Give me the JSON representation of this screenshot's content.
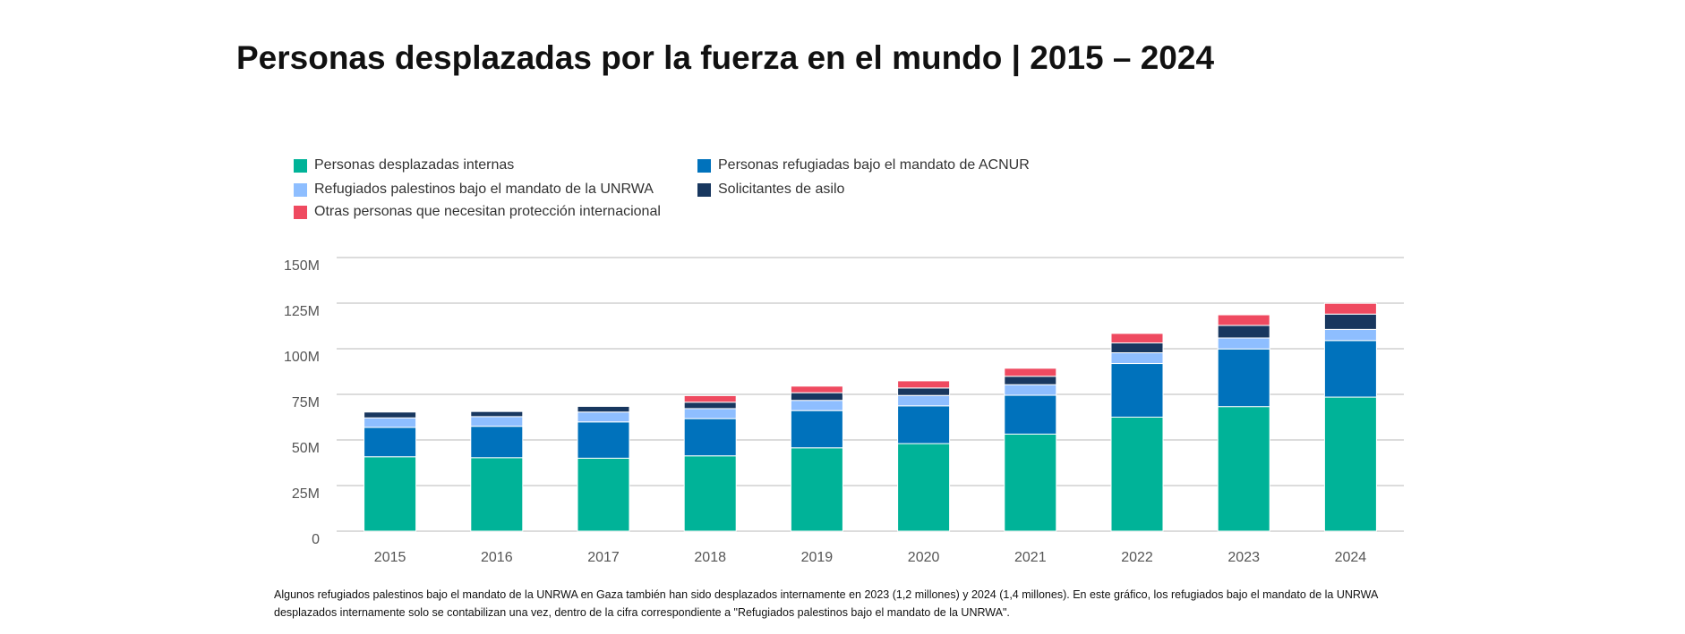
{
  "chart_data": {
    "type": "stacked_bar",
    "title": "Personas desplazadas por la fuerza en el mundo | 2015 – 2024",
    "categories": [
      "2015",
      "2016",
      "2017",
      "2018",
      "2019",
      "2020",
      "2021",
      "2022",
      "2023",
      "2024"
    ],
    "series": [
      {
        "name": "Personas desplazadas internas",
        "color": "#00b398",
        "values": [
          40.8,
          40.3,
          40.0,
          41.3,
          45.7,
          48.0,
          53.2,
          62.5,
          68.3,
          73.5
        ]
      },
      {
        "name": "Personas refugiadas bajo el mandato de ACNUR",
        "color": "#0072bc",
        "values": [
          16.1,
          17.2,
          19.9,
          20.4,
          20.4,
          20.7,
          21.3,
          29.4,
          31.6,
          31.0
        ]
      },
      {
        "name": "Refugiados palestinos bajo el mandato de la UNRWA",
        "color": "#8ebeff",
        "values": [
          5.2,
          5.3,
          5.4,
          5.5,
          5.6,
          5.7,
          5.8,
          5.9,
          6.0,
          6.1
        ]
      },
      {
        "name": "Solicitantes de asilo",
        "color": "#18375f",
        "values": [
          3.2,
          2.8,
          3.1,
          3.5,
          4.2,
          4.1,
          4.6,
          5.4,
          6.9,
          8.4
        ]
      },
      {
        "name": "Otras personas que necesitan protección internacional",
        "color": "#ef4a60",
        "values": [
          0,
          0,
          0,
          3.6,
          3.6,
          3.9,
          4.4,
          5.2,
          5.8,
          5.9
        ]
      }
    ],
    "ylim": [
      0,
      150
    ],
    "yticks": [
      0,
      {
        "value": 25,
        "label": "25M"
      },
      {
        "value": 50,
        "label": "50M"
      },
      {
        "value": 75,
        "label": "75M"
      },
      {
        "value": 100,
        "label": "100M"
      },
      {
        "value": 125,
        "label": "125M"
      },
      {
        "value": 150,
        "label": "150M"
      }
    ],
    "grid": true,
    "note": "Algunos refugiados palestinos bajo el mandato de la UNRWA en Gaza también han sido desplazados internamente en 2023 (1,2 millones) y 2024 (1,4 millones). En este gráfico, los refugiados bajo el mandato de la UNRWA desplazados internamente solo se contabilizan una vez, dentro de la cifra correspondiente a \"Refugiados palestinos bajo el mandato de la UNRWA\"."
  }
}
